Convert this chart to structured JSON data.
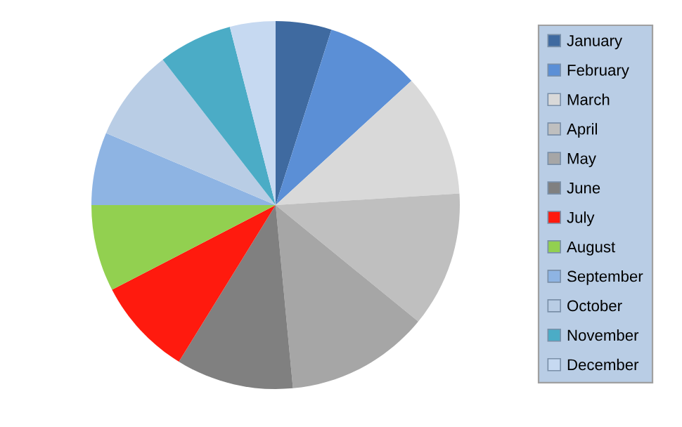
{
  "chart_data": {
    "type": "pie",
    "categories": [
      "January",
      "February",
      "March",
      "April",
      "May",
      "June",
      "July",
      "August",
      "September",
      "October",
      "November",
      "December"
    ],
    "values": [
      4.9,
      8.3,
      10.8,
      11.9,
      12.6,
      10.3,
      8.6,
      7.6,
      6.4,
      8.1,
      6.5,
      4.0
    ],
    "colors": [
      "#3f6aa0",
      "#5b8fd6",
      "#d9d9d9",
      "#bfbfbf",
      "#a6a6a6",
      "#808080",
      "#ff1a0e",
      "#92d050",
      "#8eb4e3",
      "#b9cde5",
      "#4bacc6",
      "#c6d9f1"
    ],
    "legend": "right"
  }
}
